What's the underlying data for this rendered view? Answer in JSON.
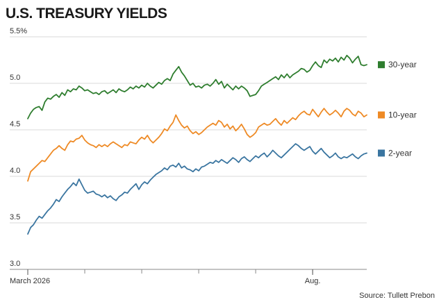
{
  "chart_data": {
    "type": "line",
    "title": "U.S. TREASURY YIELDS",
    "source": "Source: Tullett Prebon",
    "ylim": [
      3.0,
      5.5
    ],
    "y_ticks": [
      "3.0",
      "3.5",
      "4.0",
      "4.5",
      "5.0",
      "5.5%"
    ],
    "y_tick_values": [
      3.0,
      3.5,
      4.0,
      4.5,
      5.0,
      5.5
    ],
    "x_labels": [
      "March 2026",
      "Aug."
    ],
    "x_label_positions": [
      0,
      100
    ],
    "x_minor_ticks": [
      0,
      20,
      40,
      60,
      80,
      100,
      120
    ],
    "n_points": 120,
    "grid": "horizontal",
    "legend_placement": "right",
    "series": [
      {
        "name": "30-year",
        "color": "#2e7d2e",
        "values": [
          4.62,
          4.68,
          4.72,
          4.74,
          4.75,
          4.71,
          4.8,
          4.84,
          4.83,
          4.86,
          4.88,
          4.85,
          4.9,
          4.87,
          4.93,
          4.91,
          4.94,
          4.93,
          4.97,
          4.95,
          4.92,
          4.93,
          4.91,
          4.89,
          4.9,
          4.88,
          4.91,
          4.92,
          4.89,
          4.91,
          4.93,
          4.9,
          4.94,
          4.92,
          4.91,
          4.93,
          4.96,
          4.94,
          4.97,
          4.95,
          4.98,
          4.96,
          5.0,
          4.97,
          4.95,
          4.98,
          5.01,
          4.99,
          5.03,
          5.05,
          5.03,
          5.1,
          5.14,
          5.18,
          5.12,
          5.08,
          5.03,
          4.98,
          5.0,
          4.96,
          4.97,
          4.95,
          4.98,
          4.99,
          4.97,
          5.0,
          5.04,
          4.99,
          5.02,
          4.95,
          4.99,
          4.96,
          4.93,
          4.97,
          4.94,
          4.97,
          4.95,
          4.92,
          4.86,
          4.87,
          4.88,
          4.92,
          4.97,
          4.99,
          5.01,
          5.03,
          5.05,
          5.07,
          5.04,
          5.09,
          5.06,
          5.1,
          5.06,
          5.09,
          5.11,
          5.13,
          5.16,
          5.15,
          5.12,
          5.14,
          5.19,
          5.23,
          5.19,
          5.17,
          5.25,
          5.22,
          5.26,
          5.24,
          5.27,
          5.23,
          5.28,
          5.25,
          5.3,
          5.27,
          5.22,
          5.26,
          5.29,
          5.2,
          5.19,
          5.2
        ]
      },
      {
        "name": "10-year",
        "color": "#ee8a25",
        "values": [
          3.95,
          4.05,
          4.08,
          4.11,
          4.14,
          4.17,
          4.16,
          4.2,
          4.24,
          4.28,
          4.3,
          4.33,
          4.3,
          4.28,
          4.34,
          4.38,
          4.37,
          4.4,
          4.41,
          4.44,
          4.39,
          4.36,
          4.34,
          4.33,
          4.31,
          4.34,
          4.32,
          4.34,
          4.32,
          4.35,
          4.37,
          4.35,
          4.33,
          4.31,
          4.34,
          4.33,
          4.37,
          4.36,
          4.35,
          4.39,
          4.42,
          4.4,
          4.44,
          4.39,
          4.36,
          4.39,
          4.42,
          4.46,
          4.51,
          4.49,
          4.54,
          4.58,
          4.66,
          4.6,
          4.55,
          4.52,
          4.54,
          4.49,
          4.46,
          4.48,
          4.45,
          4.47,
          4.5,
          4.53,
          4.55,
          4.57,
          4.55,
          4.6,
          4.58,
          4.53,
          4.56,
          4.51,
          4.54,
          4.49,
          4.52,
          4.56,
          4.51,
          4.45,
          4.42,
          4.44,
          4.47,
          4.53,
          4.55,
          4.57,
          4.55,
          4.56,
          4.59,
          4.62,
          4.58,
          4.55,
          4.6,
          4.57,
          4.6,
          4.63,
          4.61,
          4.65,
          4.68,
          4.7,
          4.67,
          4.66,
          4.72,
          4.68,
          4.64,
          4.69,
          4.73,
          4.69,
          4.66,
          4.68,
          4.71,
          4.68,
          4.64,
          4.7,
          4.73,
          4.71,
          4.67,
          4.65,
          4.7,
          4.68,
          4.64,
          4.66
        ]
      },
      {
        "name": "2-year",
        "color": "#3a75a0",
        "values": [
          3.38,
          3.45,
          3.48,
          3.53,
          3.57,
          3.55,
          3.59,
          3.63,
          3.66,
          3.7,
          3.75,
          3.73,
          3.78,
          3.82,
          3.86,
          3.89,
          3.93,
          3.9,
          3.97,
          3.91,
          3.85,
          3.82,
          3.83,
          3.84,
          3.81,
          3.8,
          3.78,
          3.8,
          3.77,
          3.79,
          3.76,
          3.74,
          3.78,
          3.8,
          3.83,
          3.82,
          3.86,
          3.89,
          3.92,
          3.86,
          3.91,
          3.94,
          3.92,
          3.96,
          3.99,
          4.02,
          4.04,
          4.06,
          4.09,
          4.07,
          4.11,
          4.12,
          4.1,
          4.14,
          4.09,
          4.11,
          4.08,
          4.07,
          4.05,
          4.08,
          4.06,
          4.1,
          4.11,
          4.13,
          4.15,
          4.14,
          4.17,
          4.15,
          4.18,
          4.16,
          4.14,
          4.17,
          4.2,
          4.18,
          4.15,
          4.19,
          4.21,
          4.18,
          4.16,
          4.19,
          4.22,
          4.2,
          4.23,
          4.25,
          4.21,
          4.24,
          4.28,
          4.25,
          4.22,
          4.2,
          4.23,
          4.26,
          4.29,
          4.32,
          4.35,
          4.33,
          4.3,
          4.28,
          4.3,
          4.32,
          4.27,
          4.24,
          4.27,
          4.3,
          4.26,
          4.23,
          4.2,
          4.22,
          4.25,
          4.21,
          4.19,
          4.21,
          4.2,
          4.22,
          4.24,
          4.21,
          4.19,
          4.22,
          4.24,
          4.25
        ]
      }
    ]
  }
}
